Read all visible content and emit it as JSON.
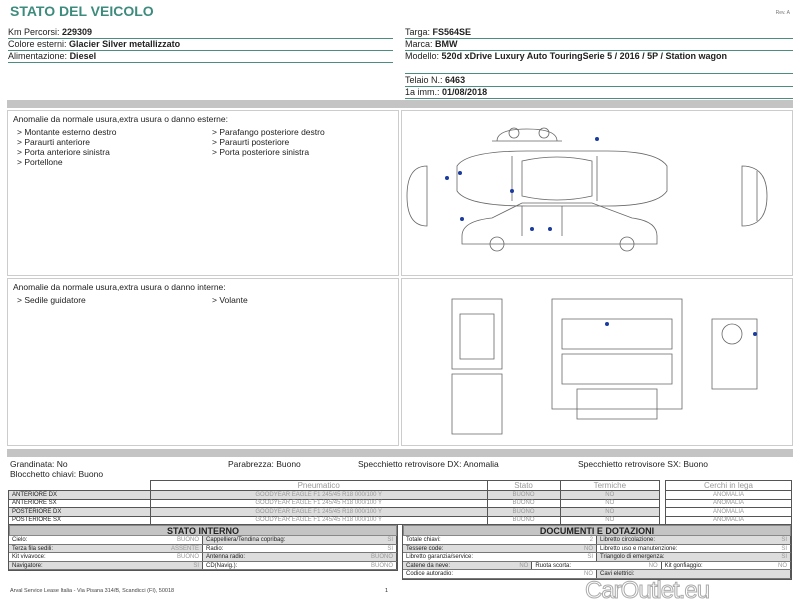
{
  "header": {
    "title": "STATO DEL VEICOLO",
    "rev": "Rev. A"
  },
  "fields_left": [
    {
      "label": "Km Percorsi:",
      "value": "229309"
    },
    {
      "label": "Colore esterni:",
      "value": "Glacier Silver metallizzato"
    },
    {
      "label": "Alimentazione:",
      "value": "Diesel"
    }
  ],
  "fields_right": [
    {
      "label": "Targa:",
      "value": "FS564SE"
    },
    {
      "label": "Marca:",
      "value": "BMW"
    },
    {
      "label": "Modello:",
      "value": "520d xDrive Luxury Auto TouringSerie 5 / 2016 / 5P / Station wagon"
    },
    {
      "label": "Telaio N.:",
      "value": "6463"
    },
    {
      "label": "1a imm.:",
      "value": "01/08/2018"
    }
  ],
  "exterior": {
    "title": "Anomalie da normale usura,extra usura o danno esterne:",
    "items": [
      "> Montante esterno destro",
      "> Parafango posteriore destro",
      "> Paraurti anteriore",
      "> Paraurti posteriore",
      "> Porta anteriore sinistra",
      "> Porta posteriore sinistra",
      "> Portellone"
    ]
  },
  "interior": {
    "title": "Anomalie da normale usura,extra usura o danno interne:",
    "items": [
      "> Sedile guidatore",
      "> Volante"
    ]
  },
  "summary": {
    "grandinata": "Grandinata: No",
    "blocchetto": "Blocchetto chiavi: Buono",
    "parabrezza": "Parabrezza: Buono",
    "specchietto_dx": "Specchietto retrovisore DX: Anomalia",
    "specchietto_sx": "Specchietto retrovisore SX: Buono"
  },
  "tires": {
    "headers": [
      "Pneumatico",
      "Stato",
      "Termiche"
    ],
    "rows": [
      {
        "pos": "ANTERIORE DX",
        "tire": "GOODYEAR EAGLE F1 245/45 R18 000/100 Y",
        "stato": "BUONO",
        "termiche": "NO"
      },
      {
        "pos": "ANTERIORE SX",
        "tire": "GOODYEAR EAGLE F1 245/45 R18 000/100 Y",
        "stato": "BUONO",
        "termiche": "NO"
      },
      {
        "pos": "POSTERIORE DX",
        "tire": "GOODYEAR EAGLE F1 245/45 R18 000/100 Y",
        "stato": "BUONO",
        "termiche": "NO"
      },
      {
        "pos": "POSTERIORE SX",
        "tire": "GOODYEAR EAGLE F1 245/45 R18 000/100 Y",
        "stato": "BUONO",
        "termiche": "NO"
      }
    ]
  },
  "rims": {
    "header": "Cerchi in lega",
    "rows": [
      "ANOMALIA",
      "ANOMALIA",
      "ANOMALIA",
      "ANOMALIA"
    ]
  },
  "stato_interno": {
    "title": "STATO INTERNO",
    "rows": [
      [
        {
          "k": "Cielo:",
          "v": "BUONO"
        },
        {
          "k": "Cappelliera/Tendina copribag:",
          "v": "SI"
        }
      ],
      [
        {
          "k": "Terza fila sedili:",
          "v": "ASSENTE"
        },
        {
          "k": "Radio:",
          "v": "SI"
        }
      ],
      [
        {
          "k": "Kit vivavoce:",
          "v": "BUONO"
        },
        {
          "k": "Antenna radio:",
          "v": "BUONO"
        }
      ],
      [
        {
          "k": "Navigatore:",
          "v": "SI"
        },
        {
          "k": "CD(Navig.):",
          "v": "BUONO"
        }
      ]
    ]
  },
  "documenti": {
    "title": "DOCUMENTI E DOTAZIONI",
    "rows": [
      [
        {
          "k": "Totale chiavi:",
          "v": "2"
        },
        {
          "k": "Libretto circolazione:",
          "v": "SI"
        }
      ],
      [
        {
          "k": "Tessere code:",
          "v": "NO"
        },
        {
          "k": "Libretto uso e manutenzione:",
          "v": "SI"
        }
      ],
      [
        {
          "k": "Libretto garanzia/service:",
          "v": "SI"
        },
        {
          "k": "Triangolo di emergenza:",
          "v": "SI"
        }
      ],
      [
        {
          "k": "Catene da neve:",
          "v": "NO"
        },
        {
          "k": "Ruota scorta:",
          "v": "NO"
        },
        {
          "k": "Kit gonfiaggio:",
          "v": "NO"
        }
      ],
      [
        {
          "k": "Codice autoradio:",
          "v": "NO"
        },
        {
          "k": "Cavi elettrici:",
          "v": ""
        }
      ]
    ]
  },
  "footer": {
    "address": "Arval Service Lease Italia - Via Pisana 314/B, Scandicci (FI), 50018",
    "page": "1",
    "watermark": "CarOutlet.eu"
  },
  "colors": {
    "title": "#3d8b7d",
    "damage_dot": "#1a3ca0",
    "bar": "#c4c4c4"
  }
}
